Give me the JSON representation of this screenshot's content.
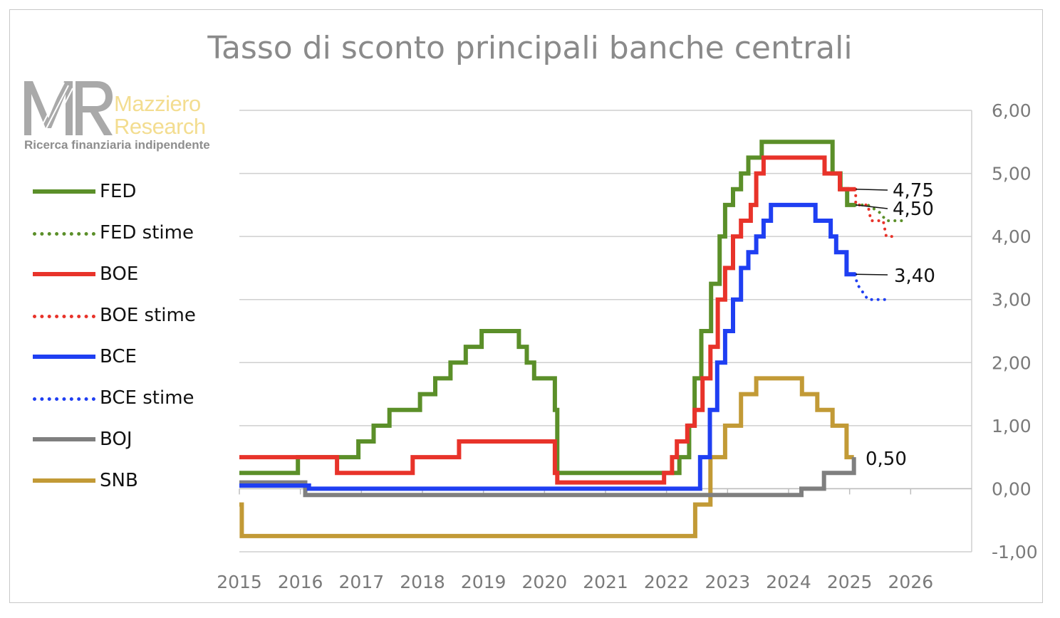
{
  "chart_data": {
    "type": "line",
    "title": "Tasso di sconto principali banche centrali",
    "xlabel": "",
    "ylabel": "",
    "xlim": [
      2015,
      2027
    ],
    "ylim": [
      -1,
      6
    ],
    "x_ticks": [
      2015,
      2016,
      2017,
      2018,
      2019,
      2020,
      2021,
      2022,
      2023,
      2024,
      2025,
      2026
    ],
    "x_tick_labels": [
      "2015",
      "2016",
      "2017",
      "2018",
      "2019",
      "2020",
      "2021",
      "2022",
      "2023",
      "2024",
      "2025",
      "2026"
    ],
    "y_ticks": [
      -1,
      0,
      1,
      2,
      3,
      4,
      5,
      6
    ],
    "y_tick_labels": [
      "-1,00",
      "0,00",
      "1,00",
      "2,00",
      "3,00",
      "4,00",
      "5,00",
      "6,00"
    ],
    "y_axis_side": "right",
    "grid": true,
    "legend_position": "left",
    "series": [
      {
        "name": "FED",
        "color": "#5b8f29",
        "style": "solid",
        "points": [
          [
            2015.0,
            0.25
          ],
          [
            2015.96,
            0.25
          ],
          [
            2015.96,
            0.5
          ],
          [
            2016.95,
            0.5
          ],
          [
            2016.95,
            0.75
          ],
          [
            2017.2,
            0.75
          ],
          [
            2017.2,
            1.0
          ],
          [
            2017.46,
            1.0
          ],
          [
            2017.46,
            1.25
          ],
          [
            2017.96,
            1.25
          ],
          [
            2017.96,
            1.5
          ],
          [
            2018.21,
            1.5
          ],
          [
            2018.21,
            1.75
          ],
          [
            2018.46,
            1.75
          ],
          [
            2018.46,
            2.0
          ],
          [
            2018.71,
            2.0
          ],
          [
            2018.71,
            2.25
          ],
          [
            2018.97,
            2.25
          ],
          [
            2018.97,
            2.5
          ],
          [
            2019.58,
            2.5
          ],
          [
            2019.58,
            2.25
          ],
          [
            2019.71,
            2.25
          ],
          [
            2019.71,
            2.0
          ],
          [
            2019.83,
            2.0
          ],
          [
            2019.83,
            1.75
          ],
          [
            2020.17,
            1.75
          ],
          [
            2020.17,
            1.25
          ],
          [
            2020.21,
            1.25
          ],
          [
            2020.21,
            0.25
          ],
          [
            2022.21,
            0.25
          ],
          [
            2022.21,
            0.5
          ],
          [
            2022.37,
            0.5
          ],
          [
            2022.37,
            1.0
          ],
          [
            2022.46,
            1.0
          ],
          [
            2022.46,
            1.75
          ],
          [
            2022.57,
            1.75
          ],
          [
            2022.57,
            2.5
          ],
          [
            2022.73,
            2.5
          ],
          [
            2022.73,
            3.25
          ],
          [
            2022.87,
            3.25
          ],
          [
            2022.87,
            4.0
          ],
          [
            2022.96,
            4.0
          ],
          [
            2022.96,
            4.5
          ],
          [
            2023.09,
            4.5
          ],
          [
            2023.09,
            4.75
          ],
          [
            2023.22,
            4.75
          ],
          [
            2023.22,
            5.0
          ],
          [
            2023.34,
            5.0
          ],
          [
            2023.34,
            5.25
          ],
          [
            2023.56,
            5.25
          ],
          [
            2023.56,
            5.5
          ],
          [
            2024.72,
            5.5
          ],
          [
            2024.72,
            5.0
          ],
          [
            2024.85,
            5.0
          ],
          [
            2024.85,
            4.75
          ],
          [
            2024.96,
            4.75
          ],
          [
            2024.96,
            4.5
          ],
          [
            2025.1,
            4.5
          ]
        ]
      },
      {
        "name": "FED stime",
        "color": "#5b8f29",
        "style": "dotted",
        "points": [
          [
            2025.1,
            4.5
          ],
          [
            2025.3,
            4.5
          ],
          [
            2025.5,
            4.375
          ],
          [
            2025.6,
            4.25
          ],
          [
            2025.85,
            4.25
          ]
        ]
      },
      {
        "name": "BOE",
        "color": "#e8332a",
        "style": "solid",
        "points": [
          [
            2015.0,
            0.5
          ],
          [
            2016.6,
            0.5
          ],
          [
            2016.6,
            0.25
          ],
          [
            2017.84,
            0.25
          ],
          [
            2017.84,
            0.5
          ],
          [
            2018.6,
            0.5
          ],
          [
            2018.6,
            0.75
          ],
          [
            2020.17,
            0.75
          ],
          [
            2020.17,
            0.25
          ],
          [
            2020.21,
            0.25
          ],
          [
            2020.21,
            0.1
          ],
          [
            2021.96,
            0.1
          ],
          [
            2021.96,
            0.25
          ],
          [
            2022.09,
            0.25
          ],
          [
            2022.09,
            0.5
          ],
          [
            2022.17,
            0.5
          ],
          [
            2022.17,
            0.75
          ],
          [
            2022.34,
            0.75
          ],
          [
            2022.34,
            1.0
          ],
          [
            2022.46,
            1.0
          ],
          [
            2022.46,
            1.25
          ],
          [
            2022.59,
            1.25
          ],
          [
            2022.59,
            1.75
          ],
          [
            2022.72,
            1.75
          ],
          [
            2022.72,
            2.25
          ],
          [
            2022.84,
            2.25
          ],
          [
            2022.84,
            3.0
          ],
          [
            2022.96,
            3.0
          ],
          [
            2022.96,
            3.5
          ],
          [
            2023.09,
            3.5
          ],
          [
            2023.09,
            4.0
          ],
          [
            2023.22,
            4.0
          ],
          [
            2023.22,
            4.25
          ],
          [
            2023.38,
            4.25
          ],
          [
            2023.38,
            4.5
          ],
          [
            2023.47,
            4.5
          ],
          [
            2023.47,
            5.0
          ],
          [
            2023.59,
            5.0
          ],
          [
            2023.59,
            5.25
          ],
          [
            2024.59,
            5.25
          ],
          [
            2024.59,
            5.0
          ],
          [
            2024.84,
            5.0
          ],
          [
            2024.84,
            4.75
          ],
          [
            2025.1,
            4.75
          ]
        ]
      },
      {
        "name": "BOE stime",
        "color": "#e8332a",
        "style": "dotted",
        "points": [
          [
            2025.1,
            4.75
          ],
          [
            2025.1,
            4.5
          ],
          [
            2025.3,
            4.5
          ],
          [
            2025.35,
            4.25
          ],
          [
            2025.55,
            4.25
          ],
          [
            2025.6,
            4.0
          ],
          [
            2025.7,
            4.0
          ]
        ]
      },
      {
        "name": "BCE",
        "color": "#1f3ff2",
        "style": "solid",
        "points": [
          [
            2015.0,
            0.05
          ],
          [
            2016.14,
            0.05
          ],
          [
            2016.14,
            0.0
          ],
          [
            2022.55,
            0.0
          ],
          [
            2022.55,
            0.5
          ],
          [
            2022.71,
            0.5
          ],
          [
            2022.71,
            1.25
          ],
          [
            2022.83,
            1.25
          ],
          [
            2022.83,
            2.0
          ],
          [
            2022.96,
            2.0
          ],
          [
            2022.96,
            2.5
          ],
          [
            2023.09,
            2.5
          ],
          [
            2023.09,
            3.0
          ],
          [
            2023.22,
            3.0
          ],
          [
            2023.22,
            3.5
          ],
          [
            2023.34,
            3.5
          ],
          [
            2023.34,
            3.75
          ],
          [
            2023.47,
            3.75
          ],
          [
            2023.47,
            4.0
          ],
          [
            2023.59,
            4.0
          ],
          [
            2023.59,
            4.25
          ],
          [
            2023.71,
            4.25
          ],
          [
            2023.71,
            4.5
          ],
          [
            2024.44,
            4.5
          ],
          [
            2024.44,
            4.25
          ],
          [
            2024.69,
            4.25
          ],
          [
            2024.69,
            4.0
          ],
          [
            2024.78,
            4.0
          ],
          [
            2024.78,
            3.75
          ],
          [
            2024.95,
            3.75
          ],
          [
            2024.95,
            3.4
          ],
          [
            2025.1,
            3.4
          ]
        ]
      },
      {
        "name": "BCE stime",
        "color": "#1f3ff2",
        "style": "dotted",
        "points": [
          [
            2025.1,
            3.4
          ],
          [
            2025.12,
            3.25
          ],
          [
            2025.3,
            3.0
          ],
          [
            2025.6,
            3.0
          ]
        ]
      },
      {
        "name": "BOJ",
        "color": "#7f7f7f",
        "style": "solid",
        "points": [
          [
            2015.0,
            0.1
          ],
          [
            2016.08,
            0.1
          ],
          [
            2016.08,
            -0.1
          ],
          [
            2024.21,
            -0.1
          ],
          [
            2024.21,
            0.0
          ],
          [
            2024.58,
            0.0
          ],
          [
            2024.58,
            0.25
          ],
          [
            2025.07,
            0.25
          ],
          [
            2025.07,
            0.5
          ]
        ]
      },
      {
        "name": "SNB",
        "color": "#c29a36",
        "style": "solid",
        "points": [
          [
            2015.0,
            -0.25
          ],
          [
            2015.04,
            -0.25
          ],
          [
            2015.04,
            -0.75
          ],
          [
            2022.47,
            -0.75
          ],
          [
            2022.47,
            -0.25
          ],
          [
            2022.72,
            -0.25
          ],
          [
            2022.72,
            0.5
          ],
          [
            2022.96,
            0.5
          ],
          [
            2022.96,
            1.0
          ],
          [
            2023.22,
            1.0
          ],
          [
            2023.22,
            1.5
          ],
          [
            2023.47,
            1.5
          ],
          [
            2023.47,
            1.75
          ],
          [
            2024.22,
            1.75
          ],
          [
            2024.22,
            1.5
          ],
          [
            2024.47,
            1.5
          ],
          [
            2024.47,
            1.25
          ],
          [
            2024.72,
            1.25
          ],
          [
            2024.72,
            1.0
          ],
          [
            2024.95,
            1.0
          ],
          [
            2024.95,
            0.5
          ],
          [
            2025.07,
            0.5
          ]
        ]
      }
    ],
    "end_labels": [
      {
        "text": "4,75",
        "x": 2025.1,
        "y": 4.75,
        "series": "BOE"
      },
      {
        "text": "4,50",
        "x": 2025.1,
        "y": 4.5,
        "series": "FED"
      },
      {
        "text": "3,40",
        "x": 2025.1,
        "y": 3.4,
        "series": "BCE"
      },
      {
        "text": "0,50",
        "x": 2025.07,
        "y": 0.5,
        "series": "SNB"
      }
    ]
  },
  "logo": {
    "mark": "MR",
    "line1": "Mazziero",
    "line2": "Research",
    "tagline": "Ricerca finanziaria indipendente"
  },
  "legend": [
    {
      "label": "FED",
      "color": "#5b8f29",
      "style": "solid"
    },
    {
      "label": "FED stime",
      "color": "#5b8f29",
      "style": "dotted"
    },
    {
      "label": "BOE",
      "color": "#e8332a",
      "style": "solid"
    },
    {
      "label": "BOE stime",
      "color": "#e8332a",
      "style": "dotted"
    },
    {
      "label": "BCE",
      "color": "#1f3ff2",
      "style": "solid"
    },
    {
      "label": "BCE stime",
      "color": "#1f3ff2",
      "style": "dotted"
    },
    {
      "label": "BOJ",
      "color": "#7f7f7f",
      "style": "solid"
    },
    {
      "label": "SNB",
      "color": "#c29a36",
      "style": "solid"
    }
  ]
}
